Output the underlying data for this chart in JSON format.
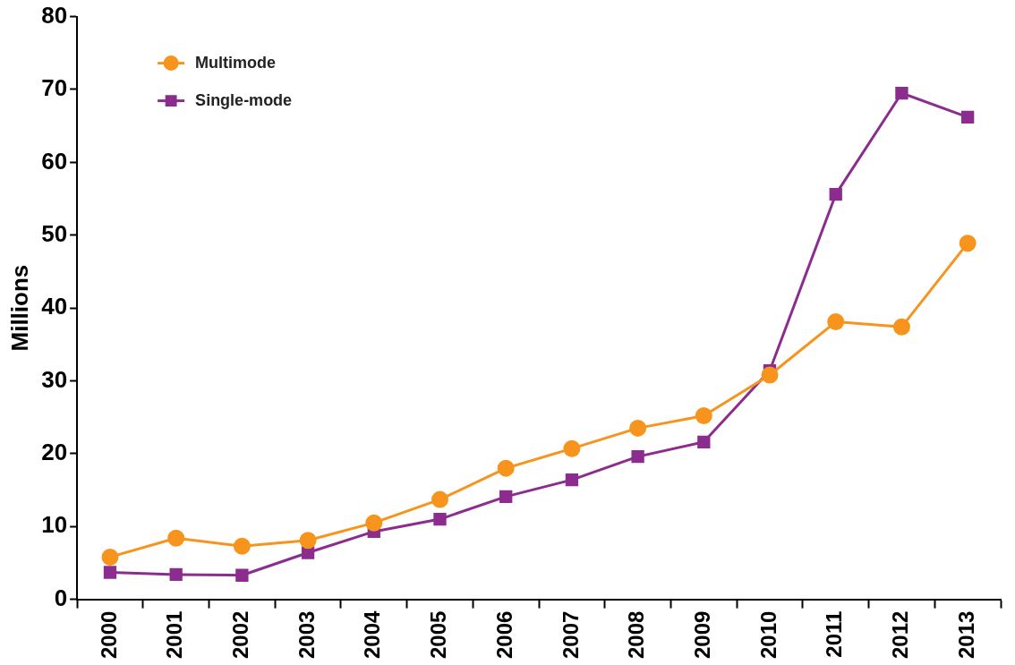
{
  "chart_data": {
    "type": "line",
    "ylabel": "Millions",
    "categories": [
      "2000",
      "2001",
      "2002",
      "2003",
      "2004",
      "2005",
      "2006",
      "2007",
      "2008",
      "2009",
      "2010",
      "2011",
      "2012",
      "2013"
    ],
    "series": [
      {
        "name": "Multimode",
        "color": "#f7941d",
        "marker": "circle",
        "values": [
          5.8,
          8.4,
          7.3,
          8.1,
          10.5,
          13.7,
          18.0,
          20.7,
          23.5,
          25.2,
          30.8,
          38.1,
          37.4,
          48.9
        ]
      },
      {
        "name": "Single-mode",
        "color": "#8b2c8e",
        "marker": "square",
        "values": [
          3.7,
          3.4,
          3.3,
          6.4,
          9.3,
          11.0,
          14.1,
          16.4,
          19.6,
          21.6,
          31.4,
          55.6,
          69.5,
          66.2
        ]
      }
    ],
    "ylim": [
      0,
      80
    ],
    "yticks": [
      0,
      10,
      20,
      30,
      40,
      50,
      60,
      70,
      80
    ],
    "grid": false,
    "legend": "top left",
    "line_style": "solid"
  }
}
